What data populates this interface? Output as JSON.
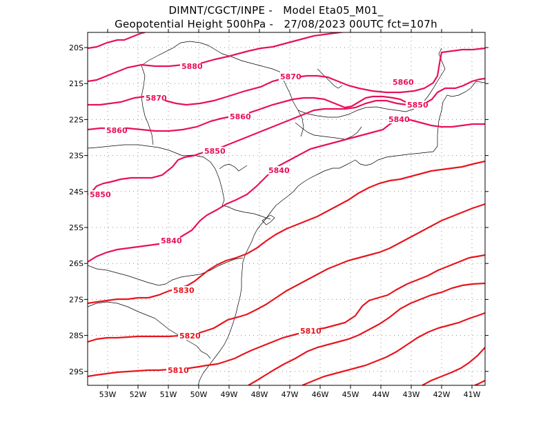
{
  "title_line1": "DIMNT/CGCT/INPE -   Model Eta05_M01_",
  "title_line2": "Geopotential Height 500hPa -   27/08/2023 00UTC fct=107h",
  "longitude_ticks": [
    "53W",
    "52W",
    "51W",
    "50W",
    "49W",
    "48W",
    "47W",
    "46W",
    "45W",
    "44W",
    "43W",
    "42W",
    "41W"
  ],
  "latitude_ticks": [
    "20S",
    "21S",
    "22S",
    "23S",
    "24S",
    "25S",
    "26S",
    "27S",
    "28S",
    "29S"
  ],
  "contour_labels": [
    "5880",
    "5870",
    "5870",
    "5860",
    "5860",
    "5860",
    "5850",
    "5850",
    "5850",
    "5840",
    "5840",
    "5840",
    "5830",
    "5820",
    "5810",
    "5810"
  ],
  "colors": {
    "contour_magenta": "#e8105a",
    "contour_red": "#e8141e",
    "coastline": "#000000",
    "grid": "#8c8c8c"
  }
}
